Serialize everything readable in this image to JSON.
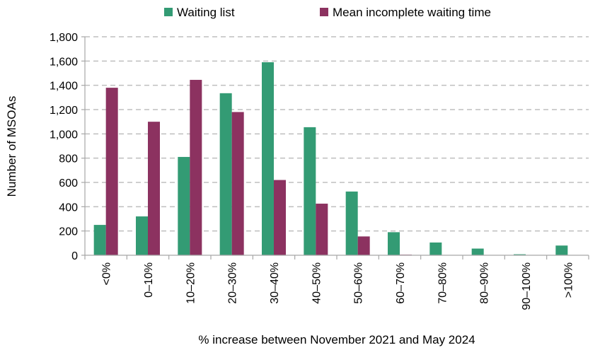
{
  "chart_data": {
    "type": "bar",
    "xlabel": "% increase between November 2021 and May 2024",
    "ylabel": "Number of MSOAs",
    "ylim": [
      0,
      1800
    ],
    "yticks": [
      0,
      200,
      400,
      600,
      800,
      1000,
      1200,
      1400,
      1600,
      1800
    ],
    "ytick_labels": [
      "0",
      "200",
      "400",
      "600",
      "800",
      "1,000",
      "1,200",
      "1,400",
      "1,600",
      "1,800"
    ],
    "categories": [
      "<0%",
      "0–10%",
      "10–20%",
      "20–30%",
      "30–40%",
      "40–50%",
      "50–60%",
      "60–70%",
      "70–80%",
      "80–90%",
      "90–100%",
      ">100%"
    ],
    "grid": true,
    "legend_position": "top",
    "series": [
      {
        "name": "Waiting list",
        "color": "#339b74",
        "values": [
          250,
          320,
          810,
          1335,
          1590,
          1055,
          525,
          190,
          105,
          55,
          8,
          80
        ]
      },
      {
        "name": "Mean incomplete waiting time",
        "color": "#8c3260",
        "values": [
          1380,
          1100,
          1445,
          1180,
          620,
          425,
          155,
          5,
          0,
          0,
          0,
          0
        ]
      }
    ]
  }
}
